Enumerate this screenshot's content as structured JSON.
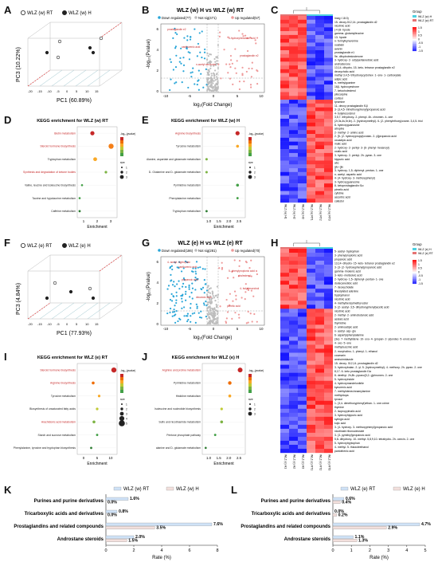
{
  "letters": {
    "A": "A",
    "B": "B",
    "C": "C",
    "D": "D",
    "E": "E",
    "F": "F",
    "G": "G",
    "H": "H",
    "I": "I",
    "J": "J",
    "K": "K",
    "L": "L"
  },
  "panelA": {
    "legend": [
      "WLZ (w) RT",
      "WLZ (w) H"
    ],
    "xlabel": "PC1 (60.89%)",
    "ylabel": "PC3 (10.22%)",
    "colors": {
      "rt": "#ffffff",
      "h": "#222222"
    }
  },
  "panelB": {
    "title": "WLZ (w) H vs WLZ (w) RT",
    "legend": [
      "Down regulated(77)",
      "Not sig(471)",
      "Up regulated(57)"
    ],
    "xlabel": "log₂(Fold Change)",
    "ylabel": "-log₁₀(Pvalue)",
    "xticks": [
      "-10",
      "-5",
      "0",
      "5",
      "10"
    ],
    "yticks": [
      "0",
      "2",
      "4",
      "6"
    ],
    "annotations": [
      "prostaglandin e2",
      "5-hydroxyhexanoic acid",
      "xanthurenic acid",
      "prostaglandin e2",
      "n-acetyl serotonin"
    ]
  },
  "panelC": {
    "legend_title": "Group",
    "legend": [
      "WLZ (w) H",
      "WLZ (w) RT"
    ],
    "scale": [
      "1.5",
      "1",
      "0.5",
      "0",
      "-0.5",
      "-1",
      "-1.5"
    ],
    "cols": [
      "WLZ (w) H1",
      "WLZ (w) H2",
      "WLZ (w) H3",
      "WLZ (w) RT1",
      "WLZ (w) RT2",
      "WLZ (w) RT3"
    ],
    "rows": [
      "lmeg l 18:3)",
      "15- deoxy-δ12,14- prostaglandin d2",
      "nicotinic acid",
      "(+/-)8- hpode",
      "gamma- glutamylleucine",
      "13- hpode",
      "n- formylkynurenine",
      "ouabain",
      "avenin",
      "prostaglandin e1",
      "9e- dihydrotestosterone",
      "3- hydroxy- 2- octylpentanedioic acid",
      "androsterone",
      "13,14- dihydro- 15- keto- tetranor prostaglandin e2",
      "deoxycholic acid",
      "methyl 3,4,5- trihydroxycyclohex- 1- ene- 1- carboxylate",
      "adipic acid",
      "n- methylguanine",
      "16β- hydroxyestrone",
      "7- ketocholesterol",
      "pilocarpine",
      "cortisol",
      "tyramine",
      "11- deoxy prostaglandin f1β",
      "3- (3,4,5- trimethoxyphenyl)propanoic acid",
      "4- butylresorcinol",
      "3,5,7- trihydroxy- 2- phenyl- 4h- chromen- 4- one",
      "(2r,3s,4s,5r,6r)- 2- (hydroxymethyl)- 6- (2- phenylethoxy)oxane- 3,4,5- triol",
      "8- hydroxyguanosine",
      "atropine",
      "2- methyl- 2- amino acid",
      "2- [5- (2- hydroxypropyl)oxolan- 2- yl]propanoic acid",
      "oxoadipic acid",
      "malic acid",
      "2- hydroxy- 2- pentyl- 3- (6- phenyl- hexanoyl)",
      "oxalic acid",
      "3- hydroxy- 2- pentyl- 2h- pyran- 3- one",
      "hippuric acid",
      "abc",
      "glu- glu",
      "3- hydroxy- 1,5- diphenyl- pentan- 1- one",
      "n- acetyl- aspartic acid",
      "4- (4- hydroxy- 3- methoxyphenyl)",
      "3- hydroxyguanosine",
      "8- ketoprostaglandin f1α",
      "pimelic acid",
      "cytidine",
      "ascorbic acid",
      "cafestol"
    ]
  },
  "panelD": {
    "title": "KEGG enrichment for WLZ (w) RT",
    "xlabel": "Enrichment",
    "xticks": [
      "1",
      "2",
      "3"
    ],
    "items": [
      {
        "label": "Biotin metabolism",
        "red": true
      },
      {
        "label": "Steroid hormone biosynthesis",
        "red": true
      },
      {
        "label": "Tryptophan metabolism",
        "red": false
      },
      {
        "label": "Synthesis and degradation of ketone bodies",
        "red": true
      },
      {
        "label": "Valine, leucine and isoleucine biosynthesis",
        "red": false
      },
      {
        "label": "Taurine and hypotaurine metabolism",
        "red": false
      },
      {
        "label": "Caffeine metabolism",
        "red": false
      }
    ],
    "legend_title": "-log₁₀(pvalue)",
    "size_title": "size",
    "size_vals": [
      "1",
      "2",
      "3"
    ]
  },
  "panelE": {
    "title": "KEGG enrichment for WLZ (w) H",
    "xlabel": "Enrichment",
    "xticks": [
      "1.0",
      "1.5",
      "2.0",
      "2.5"
    ],
    "items": [
      {
        "label": "Arginine biosynthesis",
        "red": true
      },
      {
        "label": "Tyrosine metabolism",
        "red": false
      },
      {
        "label": "Alanine, aspartate and glutamate metabolism",
        "red": false
      },
      {
        "label": "D- Glutamine and D- glutamate metabolism",
        "red": false
      },
      {
        "label": "Pyrimidine metabolism",
        "red": false
      },
      {
        "label": "Phenylalanine metabolism",
        "red": false
      },
      {
        "label": "Tryptophan metabolism",
        "red": false
      }
    ],
    "legend_title": "-log₁₀(pvalue)",
    "size_title": "size",
    "size_vals": [
      "1",
      "2",
      "3"
    ]
  },
  "panelF": {
    "legend": [
      "WLZ (e) RT",
      "WLZ (e) H"
    ],
    "xlabel": "PC1 (77.93%)",
    "ylabel": "PC3 (4.84%)"
  },
  "panelG": {
    "title": "WLZ (e) H vs WLZ (e) RT",
    "legend": [
      "Down regulated(186)",
      "Not sig(281)",
      "Up regulated(70)"
    ],
    "xlabel": "log₂(Fold Change)",
    "ylabel": "-log₁₀(Pvalue)",
    "xticks": [
      "-10",
      "-5",
      "0",
      "5",
      "10"
    ],
    "yticks": [
      "0",
      "2",
      "4",
      "6"
    ],
    "annotations": [
      "4- acetyl- tryptophan",
      "5- phenylpropionic acid",
      "propanoic acid",
      "4- butylresorcinol",
      "decanoic acid",
      "pimelic acid",
      "xanthurenic acid",
      "cholesterol"
    ]
  },
  "panelH": {
    "legend_title": "Group",
    "legend": [
      "WLZ (e) H",
      "WLZ (e) RT"
    ],
    "scale": [
      "1.5",
      "1",
      "0.5",
      "0",
      "-0.5",
      "-1",
      "-1.5"
    ],
    "cols": [
      "WLZ (e) H1",
      "WLZ (e) H2",
      "WLZ (e) H3",
      "WLZ (e) RT1",
      "WLZ (e) RT2",
      "WLZ (e) RT3"
    ],
    "rows": [
      "5- acetyl- tryptophan",
      "3- phenylpropionic acid",
      "propanoic acid",
      "13,14- dihydro- 15- keto- tetranor prostaglandin e2",
      "3- (3- (2- hydroxyphenyl)propanoic acid",
      "gamma- linolenic acid",
      "3- keto- melisoleic acid",
      "2- hydroxy- 1,5- diphenyl- pentan- 1- one",
      "dodecanedioic acid",
      "7- deoxycholate",
      "lineolylated adenine",
      "tryptophanol",
      "nicotinic acid",
      "4- methylbenzylmethyl ester",
      "3- (2- acetyl- 3,5- dihydroxyphenyl)acetic acid",
      "nicotinic acid",
      "2- methyl- 2- aminobutanoic acid",
      "azelaic acid",
      "thymidine",
      "2- aminoadipic acid",
      "n- acetyl- asp- glu",
      "6- aspartylphenylalanine",
      "(3e)- 7- methylidene- 10- oxo- 4- (propan- 2- yl)undec- 5- enoic acid",
      "4- oxo- 5- ene",
      "methylsuccinic acid",
      "2- morpholino- 1- phenyl- 1- ethanol",
      "coumarin",
      "aminoimidazole",
      "15- deoxy- δ12,14- prostaglandin d2",
      "3- hydroxybutan- 2- yl- 5- (hydroxymethyl)- 4- methoxy- 2h- pyran- 2- one",
      "8,17- 6- keto prostaglandin f1α",
      "8- deethyl- 2h,8h- pyrano[3,2- g]chromen- 2- one",
      "5- hydroxyindole",
      "4- hydroxymandelonitrile",
      "kynurenic acid",
      "7- methylidenecinnamylamine",
      "methyldopa",
      "tyrosol",
      "1- (3,4- dimethoxyphenyl)ethan- 1- one oxime",
      "thymine",
      "2- isopropylmalic acid",
      "3- hydroxyhippuric acid",
      "syringic acid",
      "kojic acid",
      "3- (4- hydroxy- 3- methoxyphenyl)propanoic acid",
      "nicotinate ribonucleoside",
      "3- (3- pyridinyl)propanoic acid",
      "5,8- dihydroxy- 10- methyl- 5,8,9,10- tetrahydro- 2h- oxecin- 2- one",
      "5- hydroxytryptophan",
      "4- methyl- 5- thiazoleethanol",
      "pantothenic acid"
    ]
  },
  "panelI": {
    "title": "KEGG enrichment for WLZ (e) RT",
    "xlabel": "Enrichment",
    "xticks": [
      "0",
      "5",
      "10"
    ],
    "items": [
      {
        "label": "Steroid hormone biosynthesis",
        "red": true
      },
      {
        "label": "Arginine biosynthesis",
        "red": true
      },
      {
        "label": "Tyrosine metabolism",
        "red": false
      },
      {
        "label": "Biosynthesis of unsaturated fatty acids",
        "red": false
      },
      {
        "label": "Arachidonic acid metabolism",
        "red": true
      },
      {
        "label": "Starch and sucrose metabolism",
        "red": false
      },
      {
        "label": "Phenylalanine, tyrosine and tryptophan biosynthesis",
        "red": false
      }
    ],
    "legend_title": "-log₁₀(pvalue)",
    "size_title": "size",
    "size_vals": [
      "1",
      "2",
      "3",
      "4",
      "5"
    ]
  },
  "panelJ": {
    "title": "KEGG enrichment for WLZ (e) H",
    "xlabel": "Enrichment",
    "xticks": [
      "1.0",
      "1.5",
      "2.0",
      "2.5"
    ],
    "items": [
      {
        "label": "Arginine and proline metabolism",
        "red": true
      },
      {
        "label": "Pyrimidine metabolism",
        "red": false
      },
      {
        "label": "Histidine metabolism",
        "red": false
      },
      {
        "label": "Isoleucine and nucleotide biosynthesis",
        "red": false
      },
      {
        "label": "Sulfo and nicotinamide metabolism",
        "red": false
      },
      {
        "label": "Pentose phosphate pathway",
        "red": false
      },
      {
        "label": "alanine and D- glutamate metabolism",
        "red": false
      }
    ],
    "legend_title": "-log₁₀(pvalue)",
    "size_title": "size",
    "size_vals": [
      "1",
      "2",
      "3"
    ]
  },
  "chart_data": [
    {
      "type": "bar",
      "panel": "K",
      "categories": [
        "Purines and purine derivatives",
        "Tricarboxylic acids and derivatives",
        "Prostaglandins and related compounds",
        "Androstane steroids"
      ],
      "series": [
        {
          "name": "WLZ (w) RT",
          "values": [
            1.6,
            0.8,
            7.6,
            2.0
          ],
          "labels": [
            "1.6%",
            "0.8%",
            "7.6%",
            "2.0%"
          ],
          "color": "#cfe2f7"
        },
        {
          "name": "WLZ (w) H",
          "values": [
            0.0,
            0.0,
            3.5,
            1.5
          ],
          "labels": [
            "0.0%",
            "0.0%",
            "3.5%",
            "1.5%"
          ],
          "color": "#f3e0dd"
        }
      ],
      "xlabel": "Rate (%)",
      "xticks": [
        "0",
        "2",
        "4",
        "6",
        "8"
      ],
      "xlim": [
        0,
        8
      ],
      "orientation": "horizontal"
    },
    {
      "type": "bar",
      "panel": "L",
      "categories": [
        "Purines and purine derivatives",
        "Tricarboxylic acids and derivatives",
        "Prostaglandins and related compounds",
        "Androstane steroids"
      ],
      "series": [
        {
          "name": "WLZ (e) RT",
          "values": [
            0.6,
            0.0,
            4.7,
            1.1
          ],
          "labels": [
            "0.6%",
            "0.0%",
            "4.7%",
            "1.1%"
          ],
          "color": "#cfe2f7"
        },
        {
          "name": "WLZ (e) H",
          "values": [
            0.4,
            0.2,
            2.9,
            1.3
          ],
          "labels": [
            "0.4%",
            "0.2%",
            "2.9%",
            "1.3%"
          ],
          "color": "#f3e0dd"
        }
      ],
      "xlabel": "Rate (%)",
      "xticks": [
        "0",
        "1",
        "2",
        "3",
        "4",
        "5"
      ],
      "xlim": [
        0,
        5
      ],
      "orientation": "horizontal"
    }
  ]
}
